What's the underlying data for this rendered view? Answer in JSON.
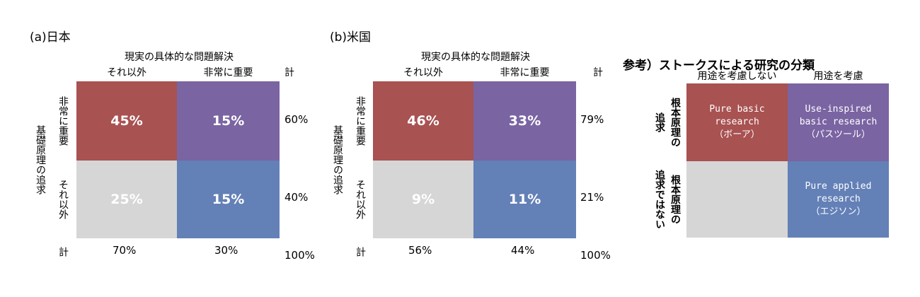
{
  "colors": {
    "other_other": "#d6d6d6",
    "other_important": "#6380b7",
    "important_other": "#a85251",
    "important_important": "#7a64a2"
  },
  "common": {
    "x_title": "現実の具体的な問題解決",
    "col_other": "それ以外",
    "col_important": "非常に重要",
    "total": "計",
    "y_title": "基礎原理の追求",
    "row_important": "非常に重要",
    "row_other": "それ以外"
  },
  "chart_data": [
    {
      "type": "heatmap",
      "title": "(a)日本",
      "xlabel": "現実の具体的な問題解決",
      "ylabel": "基礎原理の追求",
      "columns": [
        "それ以外",
        "非常に重要"
      ],
      "rows": [
        "非常に重要",
        "それ以外"
      ],
      "values": [
        [
          "45%",
          "15%"
        ],
        [
          "25%",
          "15%"
        ]
      ],
      "row_totals": [
        "60%",
        "40%"
      ],
      "col_totals": [
        "70%",
        "30%"
      ],
      "grand_total": "100%"
    },
    {
      "type": "heatmap",
      "title": "(b)米国",
      "xlabel": "現実の具体的な問題解決",
      "ylabel": "基礎原理の追求",
      "columns": [
        "それ以外",
        "非常に重要"
      ],
      "rows": [
        "非常に重要",
        "それ以外"
      ],
      "values": [
        [
          "46%",
          "33%"
        ],
        [
          "9%",
          "11%"
        ]
      ],
      "row_totals": [
        "79%",
        "21%"
      ],
      "col_totals": [
        "56%",
        "44%"
      ],
      "grand_total": "100%"
    }
  ],
  "reference": {
    "title": "参考）ストークスによる研究の分類",
    "col_no_use": "用途を考慮しない",
    "col_use": "用途を考慮",
    "row_pursuit": "根本原理の追求",
    "row_not_pursuit_1": "根本原理の",
    "row_not_pursuit_2": "追求ではない",
    "row_pursuit_1": "根本原理の",
    "row_pursuit_2": "追求",
    "bohr": [
      "Pure basic",
      "research",
      "（ボーア）"
    ],
    "pasteur": [
      "Use-inspired",
      "basic research",
      "（パスツール）"
    ],
    "edison": [
      "Pure applied",
      "research",
      "（エジソン）"
    ]
  }
}
